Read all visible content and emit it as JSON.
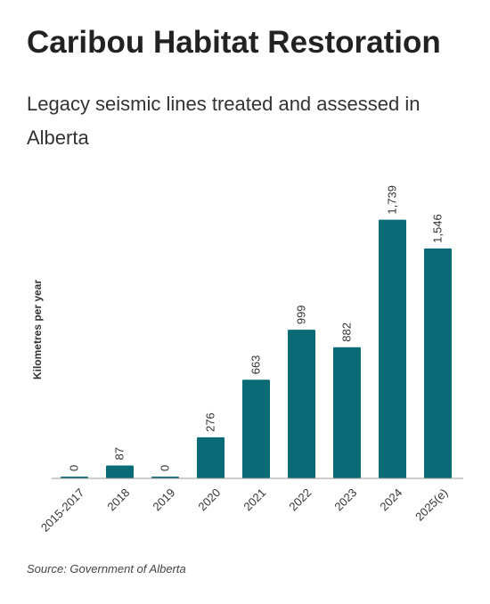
{
  "chart_data": {
    "type": "bar",
    "title": "Caribou Habitat Restoration",
    "subtitle": "Legacy seismic lines treated and assessed in Alberta",
    "ylabel": "Kilometres per year",
    "source": "Source: Government of Alberta",
    "categories": [
      "2015-2017",
      "2018",
      "2019",
      "2020",
      "2021",
      "2022",
      "2023",
      "2024",
      "2025(e)"
    ],
    "values": [
      0,
      87,
      0,
      276,
      663,
      999,
      882,
      1739,
      1546
    ],
    "value_labels": [
      "0",
      "87",
      "0",
      "276",
      "663",
      "999",
      "882",
      "1,739",
      "1,546"
    ],
    "color": "#0a6b77",
    "ylim": [
      0,
      2000
    ],
    "grid": false
  }
}
